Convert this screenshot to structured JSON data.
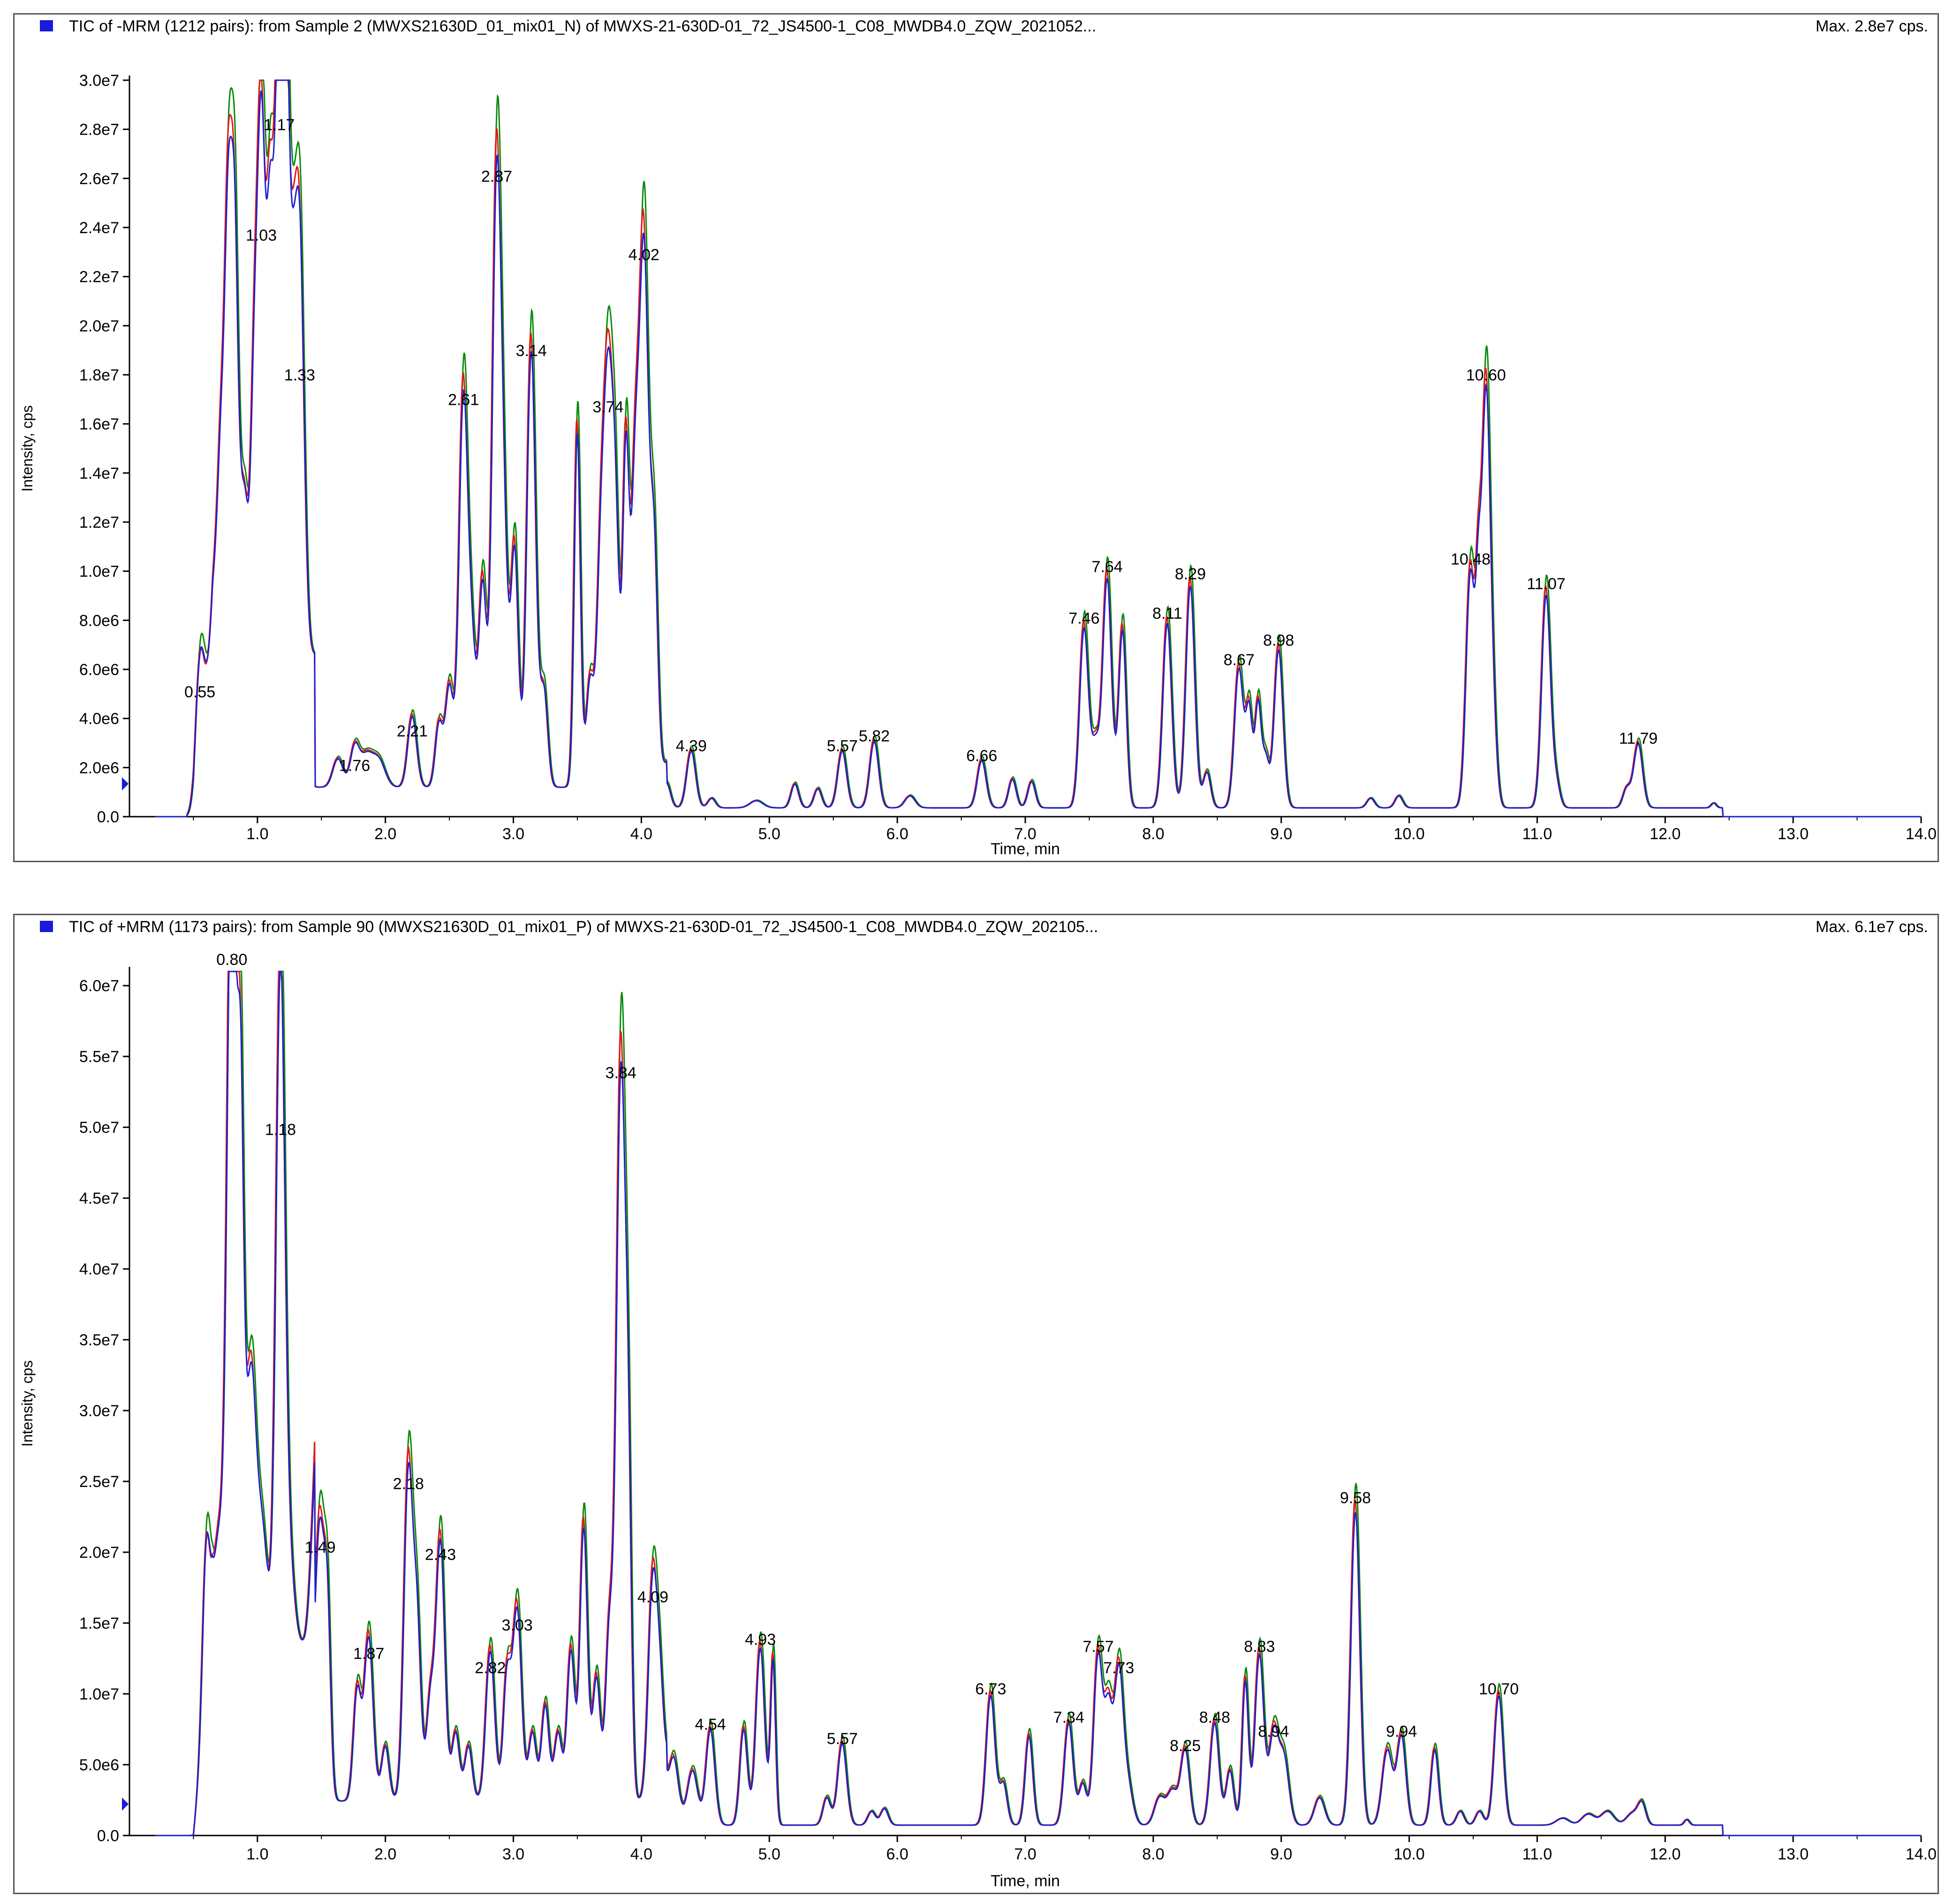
{
  "panels": [
    {
      "id": "neg",
      "title": "TIC of -MRM (1212 pairs): from Sample 2 (MWXS21630D_01_mix01_N) of MWXS-21-630D-01_72_JS4500-1_C08_MWDB4.0_ZQW_2021052...",
      "max_label": "Max. 2.8e7 cps."
    },
    {
      "id": "pos",
      "title": "TIC of +MRM (1173 pairs): from Sample 90 (MWXS21630D_01_mix01_P) of MWXS-21-630D-01_72_JS4500-1_C08_MWDB4.0_ZQW_202105...",
      "max_label": "Max. 6.1e7 cps."
    }
  ],
  "colors": {
    "series_blue": "#1f1fd0",
    "series_red": "#e01818",
    "series_green": "#0a8a0a",
    "legend": "#1a1ad8",
    "marker": "#1a1ad8"
  },
  "chart_data": [
    {
      "type": "line",
      "title": "TIC of -MRM (1212 pairs): from Sample 2 (MWXS21630D_01_mix01_N) of MWXS-21-630D-01_72_JS4500-1_C08_MWDB4.0_ZQW_2021052...",
      "max_annotation": "Max. 2.8e7 cps.",
      "xlabel": "Time, min",
      "ylabel": "Intensity, cps",
      "xlim": [
        0,
        14
      ],
      "ylim": [
        0,
        30000000
      ],
      "xticks": [
        1.0,
        2.0,
        3.0,
        4.0,
        5.0,
        6.0,
        7.0,
        8.0,
        9.0,
        10.0,
        11.0,
        12.0,
        13.0,
        14.0
      ],
      "xtick_labels": [
        "1.0",
        "2.0",
        "3.0",
        "4.0",
        "5.0",
        "6.0",
        "7.0",
        "8.0",
        "9.0",
        "10.0",
        "11.0",
        "12.0",
        "13.0",
        "14.0"
      ],
      "yticks": [
        0,
        2000000,
        4000000,
        6000000,
        8000000,
        10000000,
        12000000,
        14000000,
        16000000,
        18000000,
        20000000,
        22000000,
        24000000,
        26000000,
        28000000,
        30000000
      ],
      "ytick_labels": [
        "0.0",
        "2.0e6",
        "4.0e6",
        "6.0e6",
        "8.0e6",
        "1.0e7",
        "1.2e7",
        "1.4e7",
        "1.6e7",
        "1.8e7",
        "2.0e7",
        "2.2e7",
        "2.4e7",
        "2.6e7",
        "2.8e7",
        "3.0e7"
      ],
      "grid": false,
      "peaks": [
        {
          "t": 0.55,
          "label": "0.55",
          "i": 4600000
        },
        {
          "t": 1.03,
          "label": "1.03",
          "i": 23200000
        },
        {
          "t": 1.17,
          "label": "1.17",
          "i": 27700000
        },
        {
          "t": 1.33,
          "label": "1.33",
          "i": 17500000
        },
        {
          "t": 1.76,
          "label": "1.76",
          "i": 1600000
        },
        {
          "t": 2.21,
          "label": "2.21",
          "i": 3000000
        },
        {
          "t": 2.61,
          "label": "2.61",
          "i": 16500000
        },
        {
          "t": 2.87,
          "label": "2.87",
          "i": 25600000
        },
        {
          "t": 3.14,
          "label": "3.14",
          "i": 18500000
        },
        {
          "t": 3.74,
          "label": "3.74",
          "i": 16200000
        },
        {
          "t": 4.02,
          "label": "4.02",
          "i": 22400000
        },
        {
          "t": 4.39,
          "label": "4.39",
          "i": 2400000
        },
        {
          "t": 5.57,
          "label": "5.57",
          "i": 2400000
        },
        {
          "t": 5.82,
          "label": "5.82",
          "i": 2800000
        },
        {
          "t": 6.66,
          "label": "6.66",
          "i": 2000000
        },
        {
          "t": 7.46,
          "label": "7.46",
          "i": 7600000
        },
        {
          "t": 7.64,
          "label": "7.64",
          "i": 9700000
        },
        {
          "t": 8.11,
          "label": "8.11",
          "i": 7800000
        },
        {
          "t": 8.29,
          "label": "8.29",
          "i": 9400000
        },
        {
          "t": 8.67,
          "label": "8.67",
          "i": 5900000
        },
        {
          "t": 8.98,
          "label": "8.98",
          "i": 6700000
        },
        {
          "t": 10.48,
          "label": "10.48",
          "i": 10000000
        },
        {
          "t": 10.6,
          "label": "10.60",
          "i": 17500000
        },
        {
          "t": 11.07,
          "label": "11.07",
          "i": 9000000
        },
        {
          "t": 11.79,
          "label": "11.79",
          "i": 2700000
        }
      ],
      "extra_peaks": [
        {
          "t": 0.66,
          "i": 2500000,
          "w": 0.03
        },
        {
          "t": 0.72,
          "i": 9000000,
          "w": 0.03
        },
        {
          "t": 0.77,
          "i": 14000000,
          "w": 0.025
        },
        {
          "t": 0.82,
          "i": 18500000,
          "w": 0.03
        },
        {
          "t": 0.9,
          "i": 6500000,
          "w": 0.03
        },
        {
          "t": 0.97,
          "i": 8000000,
          "w": 0.025
        },
        {
          "t": 1.1,
          "i": 14000000,
          "w": 0.025
        },
        {
          "t": 1.22,
          "i": 20000000,
          "w": 0.025
        },
        {
          "t": 1.27,
          "i": 12000000,
          "w": 0.03
        },
        {
          "t": 1.63,
          "i": 1200000,
          "w": 0.04
        },
        {
          "t": 1.85,
          "i": 1300000,
          "w": 0.05
        },
        {
          "t": 1.95,
          "i": 1100000,
          "w": 0.05
        },
        {
          "t": 2.42,
          "i": 2700000,
          "w": 0.03
        },
        {
          "t": 2.5,
          "i": 4200000,
          "w": 0.03
        },
        {
          "t": 2.68,
          "i": 5000000,
          "w": 0.03
        },
        {
          "t": 2.76,
          "i": 8500000,
          "w": 0.03
        },
        {
          "t": 2.93,
          "i": 8000000,
          "w": 0.03
        },
        {
          "t": 3.01,
          "i": 10000000,
          "w": 0.03
        },
        {
          "t": 3.24,
          "i": 4000000,
          "w": 0.03
        },
        {
          "t": 3.5,
          "i": 15000000,
          "w": 0.025
        },
        {
          "t": 3.6,
          "i": 4500000,
          "w": 0.03
        },
        {
          "t": 3.68,
          "i": 8000000,
          "w": 0.03
        },
        {
          "t": 3.8,
          "i": 10000000,
          "w": 0.03
        },
        {
          "t": 3.88,
          "i": 14000000,
          "w": 0.025
        },
        {
          "t": 3.95,
          "i": 12000000,
          "w": 0.03
        },
        {
          "t": 4.1,
          "i": 10000000,
          "w": 0.03
        },
        {
          "t": 4.2,
          "i": 1000000,
          "w": 0.03
        },
        {
          "t": 4.55,
          "i": 400000,
          "w": 0.03
        },
        {
          "t": 4.9,
          "i": 300000,
          "w": 0.05
        },
        {
          "t": 5.2,
          "i": 1000000,
          "w": 0.03
        },
        {
          "t": 5.38,
          "i": 800000,
          "w": 0.03
        },
        {
          "t": 6.1,
          "i": 500000,
          "w": 0.04
        },
        {
          "t": 6.9,
          "i": 1200000,
          "w": 0.03
        },
        {
          "t": 7.05,
          "i": 1100000,
          "w": 0.03
        },
        {
          "t": 7.55,
          "i": 2500000,
          "w": 0.03
        },
        {
          "t": 7.76,
          "i": 7500000,
          "w": 0.03
        },
        {
          "t": 8.42,
          "i": 1500000,
          "w": 0.03
        },
        {
          "t": 8.75,
          "i": 4000000,
          "w": 0.025
        },
        {
          "t": 8.82,
          "i": 4400000,
          "w": 0.025
        },
        {
          "t": 8.88,
          "i": 2000000,
          "w": 0.025
        },
        {
          "t": 9.7,
          "i": 400000,
          "w": 0.03
        },
        {
          "t": 9.92,
          "i": 500000,
          "w": 0.03
        },
        {
          "t": 10.54,
          "i": 5500000,
          "w": 0.02
        },
        {
          "t": 10.66,
          "i": 2500000,
          "w": 0.03
        },
        {
          "t": 11.15,
          "i": 1000000,
          "w": 0.03
        },
        {
          "t": 11.7,
          "i": 800000,
          "w": 0.03
        },
        {
          "t": 12.38,
          "i": 200000,
          "w": 0.02
        }
      ]
    },
    {
      "type": "line",
      "title": "TIC of +MRM (1173 pairs): from Sample 90 (MWXS21630D_01_mix01_P) of MWXS-21-630D-01_72_JS4500-1_C08_MWDB4.0_ZQW_202105...",
      "max_annotation": "Max. 6.1e7 cps.",
      "xlabel": "Time, min",
      "ylabel": "Intensity, cps",
      "xlim": [
        0,
        14
      ],
      "ylim": [
        0,
        61000000
      ],
      "xticks": [
        1.0,
        2.0,
        3.0,
        4.0,
        5.0,
        6.0,
        7.0,
        8.0,
        9.0,
        10.0,
        11.0,
        12.0,
        13.0,
        14.0
      ],
      "xtick_labels": [
        "1.0",
        "2.0",
        "3.0",
        "4.0",
        "5.0",
        "6.0",
        "7.0",
        "8.0",
        "9.0",
        "10.0",
        "11.0",
        "12.0",
        "13.0",
        "14.0"
      ],
      "yticks": [
        0,
        5000000,
        10000000,
        15000000,
        20000000,
        25000000,
        30000000,
        35000000,
        40000000,
        45000000,
        50000000,
        55000000,
        60000000
      ],
      "ytick_labels": [
        "0.0",
        "5.0e6",
        "1.0e7",
        "1.5e7",
        "2.0e7",
        "2.5e7",
        "3.0e7",
        "3.5e7",
        "4.0e7",
        "4.5e7",
        "5.0e7",
        "5.5e7",
        "6.0e7"
      ],
      "grid": false,
      "peaks": [
        {
          "t": 0.8,
          "label": "0.80",
          "i": 61000000
        },
        {
          "t": 1.18,
          "label": "1.18",
          "i": 49000000
        },
        {
          "t": 1.49,
          "label": "1.49",
          "i": 19500000
        },
        {
          "t": 1.87,
          "label": "1.87",
          "i": 12000000
        },
        {
          "t": 2.18,
          "label": "2.18",
          "i": 24000000
        },
        {
          "t": 2.43,
          "label": "2.43",
          "i": 19000000
        },
        {
          "t": 2.82,
          "label": "2.82",
          "i": 11000000
        },
        {
          "t": 3.03,
          "label": "3.03",
          "i": 14000000
        },
        {
          "t": 3.84,
          "label": "3.84",
          "i": 53000000
        },
        {
          "t": 4.09,
          "label": "4.09",
          "i": 16000000
        },
        {
          "t": 4.54,
          "label": "4.54",
          "i": 7000000
        },
        {
          "t": 4.93,
          "label": "4.93",
          "i": 13000000
        },
        {
          "t": 5.57,
          "label": "5.57",
          "i": 6000000
        },
        {
          "t": 6.73,
          "label": "6.73",
          "i": 9500000
        },
        {
          "t": 7.34,
          "label": "7.34",
          "i": 7500000
        },
        {
          "t": 7.57,
          "label": "7.57",
          "i": 12500000
        },
        {
          "t": 7.73,
          "label": "7.73",
          "i": 11000000
        },
        {
          "t": 8.25,
          "label": "8.25",
          "i": 5500000
        },
        {
          "t": 8.48,
          "label": "8.48",
          "i": 7500000
        },
        {
          "t": 8.83,
          "label": "8.83",
          "i": 12500000
        },
        {
          "t": 8.94,
          "label": "8.94",
          "i": 6500000
        },
        {
          "t": 9.58,
          "label": "9.58",
          "i": 23000000
        },
        {
          "t": 9.94,
          "label": "9.94",
          "i": 6500000
        },
        {
          "t": 10.7,
          "label": "10.70",
          "i": 9500000
        }
      ],
      "extra_peaks": [
        {
          "t": 0.3,
          "i": 900000,
          "w": 0.01
        },
        {
          "t": 0.6,
          "i": 12000000,
          "w": 0.03
        },
        {
          "t": 0.7,
          "i": 8000000,
          "w": 0.04
        },
        {
          "t": 0.87,
          "i": 35000000,
          "w": 0.025
        },
        {
          "t": 0.95,
          "i": 20000000,
          "w": 0.04
        },
        {
          "t": 1.04,
          "i": 8000000,
          "w": 0.04
        },
        {
          "t": 1.25,
          "i": 6000000,
          "w": 0.04
        },
        {
          "t": 1.43,
          "i": 5000000,
          "w": 0.03
        },
        {
          "t": 1.55,
          "i": 12000000,
          "w": 0.025
        },
        {
          "t": 1.78,
          "i": 8000000,
          "w": 0.03
        },
        {
          "t": 2.0,
          "i": 4000000,
          "w": 0.03
        },
        {
          "t": 2.25,
          "i": 12000000,
          "w": 0.03
        },
        {
          "t": 2.35,
          "i": 7000000,
          "w": 0.03
        },
        {
          "t": 2.55,
          "i": 5000000,
          "w": 0.03
        },
        {
          "t": 2.65,
          "i": 4000000,
          "w": 0.03
        },
        {
          "t": 2.95,
          "i": 9000000,
          "w": 0.03
        },
        {
          "t": 3.15,
          "i": 5000000,
          "w": 0.03
        },
        {
          "t": 3.25,
          "i": 7000000,
          "w": 0.03
        },
        {
          "t": 3.35,
          "i": 5000000,
          "w": 0.03
        },
        {
          "t": 3.45,
          "i": 11000000,
          "w": 0.03
        },
        {
          "t": 3.55,
          "i": 20000000,
          "w": 0.03
        },
        {
          "t": 3.65,
          "i": 9000000,
          "w": 0.03
        },
        {
          "t": 3.75,
          "i": 12000000,
          "w": 0.03
        },
        {
          "t": 3.9,
          "i": 20000000,
          "w": 0.025
        },
        {
          "t": 4.15,
          "i": 7000000,
          "w": 0.03
        },
        {
          "t": 4.25,
          "i": 5000000,
          "w": 0.04
        },
        {
          "t": 4.4,
          "i": 4000000,
          "w": 0.04
        },
        {
          "t": 4.8,
          "i": 7000000,
          "w": 0.03
        },
        {
          "t": 5.03,
          "i": 12000000,
          "w": 0.02
        },
        {
          "t": 5.45,
          "i": 2000000,
          "w": 0.03
        },
        {
          "t": 5.8,
          "i": 1000000,
          "w": 0.03
        },
        {
          "t": 5.9,
          "i": 1200000,
          "w": 0.03
        },
        {
          "t": 6.83,
          "i": 3000000,
          "w": 0.03
        },
        {
          "t": 7.03,
          "i": 6500000,
          "w": 0.03
        },
        {
          "t": 7.45,
          "i": 3000000,
          "w": 0.03
        },
        {
          "t": 7.65,
          "i": 8000000,
          "w": 0.03
        },
        {
          "t": 7.8,
          "i": 3000000,
          "w": 0.04
        },
        {
          "t": 8.05,
          "i": 2000000,
          "w": 0.04
        },
        {
          "t": 8.15,
          "i": 2500000,
          "w": 0.04
        },
        {
          "t": 8.6,
          "i": 4000000,
          "w": 0.03
        },
        {
          "t": 8.72,
          "i": 10500000,
          "w": 0.025
        },
        {
          "t": 9.02,
          "i": 5000000,
          "w": 0.04
        },
        {
          "t": 9.3,
          "i": 2000000,
          "w": 0.04
        },
        {
          "t": 9.83,
          "i": 5500000,
          "w": 0.04
        },
        {
          "t": 10.2,
          "i": 5500000,
          "w": 0.03
        },
        {
          "t": 10.4,
          "i": 1000000,
          "w": 0.03
        },
        {
          "t": 10.55,
          "i": 1000000,
          "w": 0.03
        },
        {
          "t": 11.2,
          "i": 500000,
          "w": 0.05
        },
        {
          "t": 11.4,
          "i": 800000,
          "w": 0.05
        },
        {
          "t": 11.55,
          "i": 1000000,
          "w": 0.05
        },
        {
          "t": 11.75,
          "i": 900000,
          "w": 0.05
        },
        {
          "t": 11.82,
          "i": 1400000,
          "w": 0.03
        },
        {
          "t": 12.17,
          "i": 400000,
          "w": 0.02
        }
      ]
    }
  ]
}
